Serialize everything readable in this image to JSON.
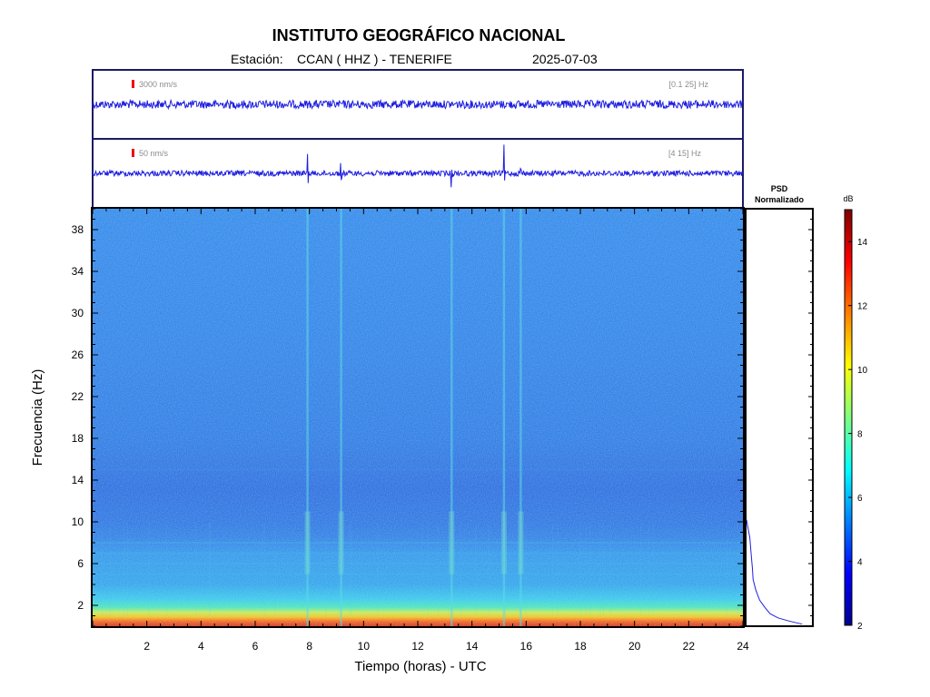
{
  "header": {
    "title": "INSTITUTO GEOGRÁFICO NACIONAL",
    "station_label": "Estación:",
    "station": "CCAN ( HHZ ) - TENERIFE",
    "date": "2025-07-03"
  },
  "colors": {
    "trace": "#1f1fe0",
    "frame": "#1a1a66",
    "scale_bar": "#ee0000",
    "annotation_text": "#8c8c8c"
  },
  "chart_data": [
    {
      "type": "line",
      "panel": "trace-broadband",
      "scale_label": "3000 nm/s",
      "band_label": "[0.1 25] Hz",
      "x_range": [
        0,
        24
      ],
      "events": []
    },
    {
      "type": "line",
      "panel": "trace-filtered",
      "scale_label": "50 nm/s",
      "band_label": "[4 15] Hz",
      "x_range": [
        0,
        24
      ],
      "events": [
        {
          "t": 5.5,
          "amp": 0.12
        },
        {
          "t": 7.93,
          "amp": 1.0
        },
        {
          "t": 9.17,
          "amp": 0.85
        },
        {
          "t": 13.25,
          "amp": 1.0
        },
        {
          "t": 14.72,
          "amp": 0.4
        },
        {
          "t": 15.18,
          "amp": 1.0
        },
        {
          "t": 15.8,
          "amp": 1.0
        },
        {
          "t": 17.82,
          "amp": 0.15
        },
        {
          "t": 18.15,
          "amp": 0.1
        }
      ]
    },
    {
      "type": "heatmap",
      "panel": "spectrogram",
      "xlabel": "Tiempo (horas) - UTC",
      "ylabel": "Frecuencia  (Hz)",
      "xlim": [
        0,
        24
      ],
      "ylim": [
        0,
        40
      ],
      "x_ticks": [
        2,
        4,
        6,
        8,
        10,
        12,
        14,
        16,
        18,
        20,
        22,
        24
      ],
      "y_ticks": [
        2,
        6,
        10,
        14,
        18,
        22,
        26,
        30,
        34,
        38
      ],
      "vertical_events_hours": [
        7.93,
        9.17,
        13.25,
        15.18,
        15.8
      ],
      "colorbar": {
        "label": "dB",
        "range": [
          2,
          15
        ],
        "ticks": [
          2,
          4,
          6,
          8,
          10,
          12,
          14
        ],
        "colormap": "jet"
      }
    },
    {
      "type": "line",
      "panel": "psd",
      "title_line1": "PSD",
      "title_line2": "Normalizado",
      "y_range": [
        0,
        40
      ],
      "points": [
        {
          "f": 0.2,
          "v": 0.85
        },
        {
          "f": 0.5,
          "v": 0.65
        },
        {
          "f": 0.8,
          "v": 0.48
        },
        {
          "f": 1.2,
          "v": 0.36
        },
        {
          "f": 1.8,
          "v": 0.28
        },
        {
          "f": 2.5,
          "v": 0.2
        },
        {
          "f": 3.5,
          "v": 0.14
        },
        {
          "f": 4.5,
          "v": 0.1
        },
        {
          "f": 5.5,
          "v": 0.09
        },
        {
          "f": 7.0,
          "v": 0.07
        },
        {
          "f": 8.5,
          "v": 0.05
        },
        {
          "f": 9.5,
          "v": 0.02
        },
        {
          "f": 10.2,
          "v": 0.0
        }
      ]
    }
  ]
}
